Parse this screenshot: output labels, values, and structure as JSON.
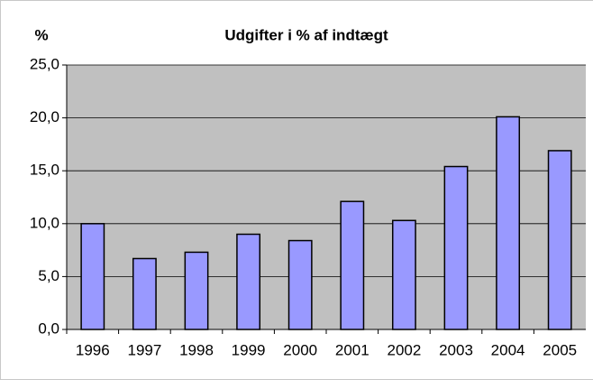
{
  "chart_data": {
    "type": "bar",
    "title": "Udgifter i % af indtægt",
    "y_label": "%",
    "categories": [
      "1996",
      "1997",
      "1998",
      "1999",
      "2000",
      "2001",
      "2002",
      "2003",
      "2004",
      "2005"
    ],
    "values": [
      10.0,
      6.7,
      7.3,
      9.0,
      8.4,
      12.1,
      10.3,
      15.4,
      20.1,
      16.9
    ],
    "color": "#9999ff",
    "ylim": [
      0,
      25
    ],
    "yticks": [
      {
        "value": 0,
        "label": "0,0"
      },
      {
        "value": 5,
        "label": "5,0"
      },
      {
        "value": 10,
        "label": "10,0"
      },
      {
        "value": 15,
        "label": "15,0"
      },
      {
        "value": 20,
        "label": "20,0"
      },
      {
        "value": 25,
        "label": "25,0"
      }
    ],
    "grid": true
  }
}
